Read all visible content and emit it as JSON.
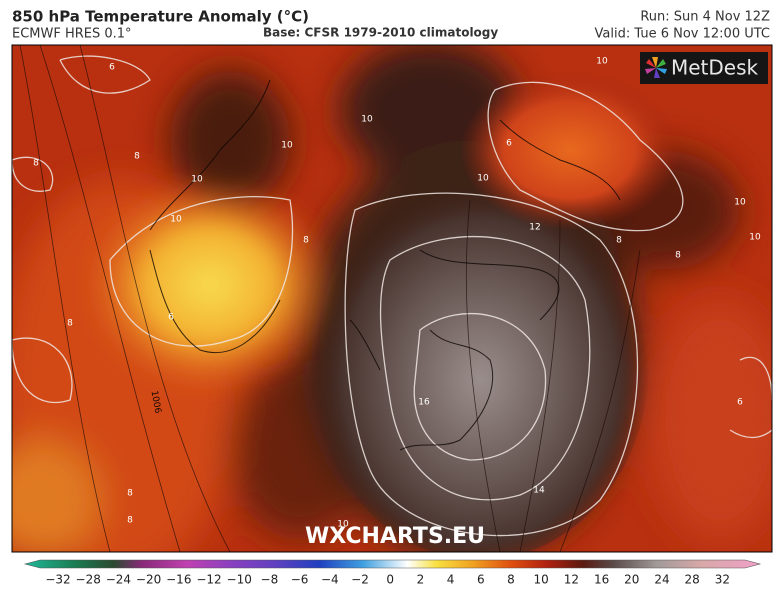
{
  "header": {
    "title": "850 hPa Temperature Anomaly (°C)",
    "model": "ECMWF HRES 0.1°",
    "base": "Base: CFSR 1979-2010 climatology",
    "run": "Run: Sun 4 Nov 12Z",
    "valid": "Valid: Tue 6 Nov 12:00 UTC"
  },
  "logo": "MetDesk",
  "watermark": "WXCHARTS.EU",
  "colorbar": {
    "ticks": [
      "−32",
      "−28",
      "−24",
      "−20",
      "−16",
      "−12",
      "−10",
      "−8",
      "−6",
      "−4",
      "−2",
      "0",
      "2",
      "4",
      "6",
      "8",
      "10",
      "12",
      "16",
      "20",
      "24",
      "28",
      "32"
    ]
  },
  "contour_labels": [
    "6",
    "8",
    "8",
    "10",
    "10",
    "10",
    "10",
    "10",
    "10",
    "6",
    "8",
    "8",
    "8",
    "10",
    "10",
    "12",
    "16",
    "14",
    "6",
    "8",
    "8",
    "8",
    "10",
    "6",
    "1006"
  ]
}
